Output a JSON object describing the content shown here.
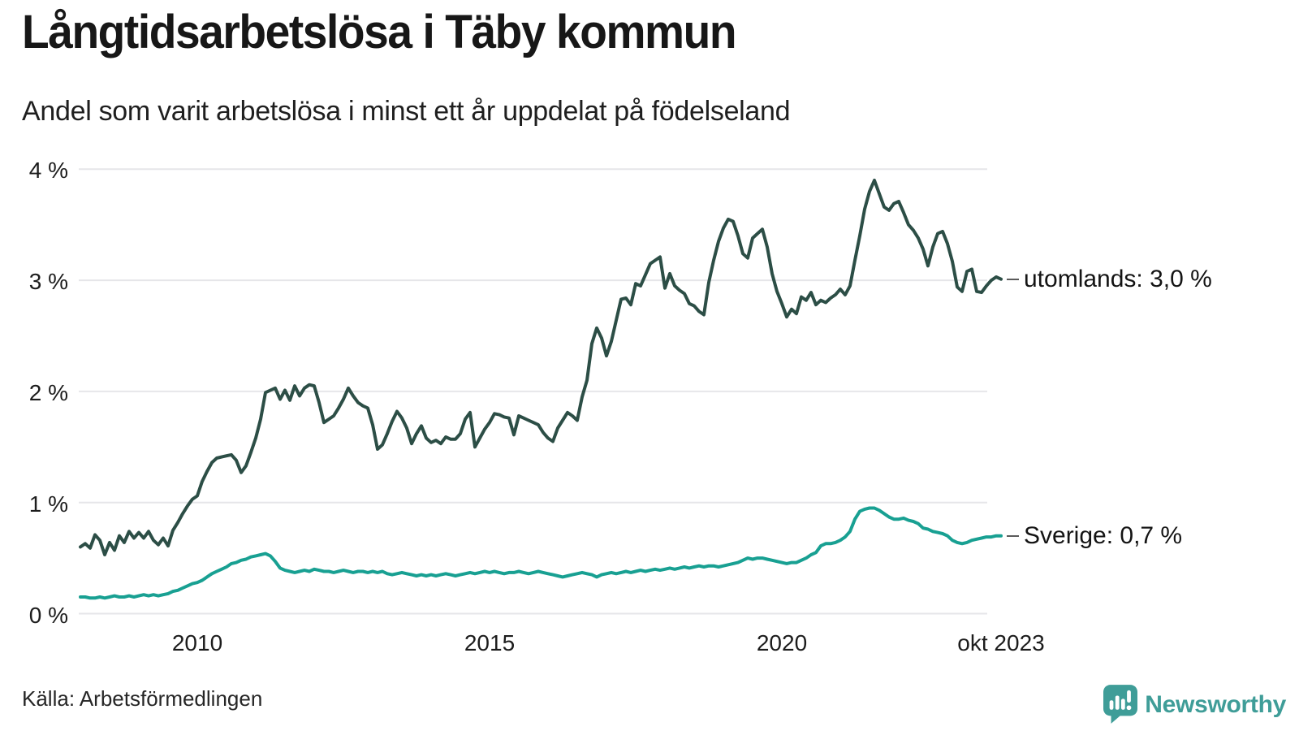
{
  "header": {
    "title": "Långtidsarbetslösa i Täby kommun",
    "subtitle": "Andel som varit arbetslösa i minst ett år uppdelat på födelseland"
  },
  "footer": {
    "source": "Källa: Arbetsförmedlingen",
    "brand": "Newsworthy"
  },
  "colors": {
    "utomlands_line": "#2c4e46",
    "sverige_line": "#18a092",
    "grid": "#e6e6e9",
    "brand_teal": "#3f9d98",
    "text": "#1a1a1a"
  },
  "chart_data": {
    "type": "line",
    "title": "Långtidsarbetslösa i Täby kommun",
    "subtitle": "Andel som varit arbetslösa i minst ett år uppdelat på födelseland",
    "x_unit": "month",
    "x_start": "2008-01",
    "x_end": "2023-10",
    "ylim": [
      0,
      4
    ],
    "grid": "horizontal",
    "legend_position": "right-end-labels",
    "y_ticks": [
      {
        "label": "0 %",
        "value": 0
      },
      {
        "label": "1 %",
        "value": 1
      },
      {
        "label": "2 %",
        "value": 2
      },
      {
        "label": "3 %",
        "value": 3
      },
      {
        "label": "4 %",
        "value": 4
      }
    ],
    "x_ticks": [
      {
        "label": "2010",
        "month_index": 24
      },
      {
        "label": "2015",
        "month_index": 84
      },
      {
        "label": "2020",
        "month_index": 144
      },
      {
        "label": "okt 2023",
        "month_index": 189
      }
    ],
    "series": [
      {
        "name": "utomlands",
        "label": "utomlands: 3,0 %",
        "end_value_label": "3,0 %",
        "color": "#2c4e46",
        "values": [
          0.6,
          0.63,
          0.59,
          0.71,
          0.66,
          0.53,
          0.64,
          0.57,
          0.7,
          0.64,
          0.74,
          0.68,
          0.73,
          0.68,
          0.74,
          0.66,
          0.62,
          0.68,
          0.61,
          0.75,
          0.82,
          0.9,
          0.97,
          1.03,
          1.06,
          1.19,
          1.28,
          1.36,
          1.4,
          1.41,
          1.42,
          1.43,
          1.38,
          1.27,
          1.33,
          1.45,
          1.58,
          1.75,
          1.99,
          2.01,
          2.03,
          1.93,
          2.01,
          1.92,
          2.05,
          1.96,
          2.03,
          2.06,
          2.05,
          1.9,
          1.72,
          1.75,
          1.78,
          1.85,
          1.93,
          2.03,
          1.96,
          1.9,
          1.87,
          1.85,
          1.7,
          1.48,
          1.52,
          1.62,
          1.73,
          1.82,
          1.76,
          1.67,
          1.53,
          1.62,
          1.69,
          1.58,
          1.54,
          1.56,
          1.53,
          1.59,
          1.57,
          1.57,
          1.62,
          1.75,
          1.81,
          1.5,
          1.58,
          1.66,
          1.72,
          1.8,
          1.79,
          1.77,
          1.76,
          1.61,
          1.78,
          1.76,
          1.74,
          1.72,
          1.7,
          1.63,
          1.58,
          1.55,
          1.67,
          1.74,
          1.81,
          1.78,
          1.74,
          1.95,
          2.1,
          2.43,
          2.57,
          2.48,
          2.32,
          2.45,
          2.64,
          2.83,
          2.84,
          2.78,
          2.97,
          2.95,
          3.05,
          3.15,
          3.18,
          3.21,
          2.93,
          3.06,
          2.95,
          2.91,
          2.88,
          2.79,
          2.77,
          2.72,
          2.69,
          2.98,
          3.18,
          3.35,
          3.47,
          3.55,
          3.53,
          3.4,
          3.24,
          3.2,
          3.38,
          3.42,
          3.46,
          3.3,
          3.06,
          2.9,
          2.79,
          2.67,
          2.74,
          2.7,
          2.85,
          2.82,
          2.89,
          2.78,
          2.82,
          2.8,
          2.84,
          2.87,
          2.92,
          2.87,
          2.95,
          3.18,
          3.4,
          3.64,
          3.8,
          3.9,
          3.78,
          3.66,
          3.63,
          3.69,
          3.71,
          3.61,
          3.5,
          3.45,
          3.38,
          3.28,
          3.13,
          3.3,
          3.42,
          3.44,
          3.33,
          3.17,
          2.94,
          2.9,
          3.08,
          3.1,
          2.9,
          2.89,
          2.95,
          3.0,
          3.03,
          3.01
        ]
      },
      {
        "name": "Sverige",
        "label": "Sverige: 0,7 %",
        "end_value_label": "0,7 %",
        "color": "#18a092",
        "values": [
          0.15,
          0.15,
          0.14,
          0.14,
          0.15,
          0.14,
          0.15,
          0.16,
          0.15,
          0.15,
          0.16,
          0.15,
          0.16,
          0.17,
          0.16,
          0.17,
          0.16,
          0.17,
          0.18,
          0.2,
          0.21,
          0.23,
          0.25,
          0.27,
          0.28,
          0.3,
          0.33,
          0.36,
          0.38,
          0.4,
          0.42,
          0.45,
          0.46,
          0.48,
          0.49,
          0.51,
          0.52,
          0.53,
          0.54,
          0.52,
          0.47,
          0.41,
          0.39,
          0.38,
          0.37,
          0.38,
          0.39,
          0.38,
          0.4,
          0.39,
          0.38,
          0.38,
          0.37,
          0.38,
          0.39,
          0.38,
          0.37,
          0.38,
          0.38,
          0.37,
          0.38,
          0.37,
          0.38,
          0.36,
          0.35,
          0.36,
          0.37,
          0.36,
          0.35,
          0.34,
          0.35,
          0.34,
          0.35,
          0.34,
          0.35,
          0.36,
          0.35,
          0.34,
          0.35,
          0.36,
          0.37,
          0.36,
          0.37,
          0.38,
          0.37,
          0.38,
          0.37,
          0.36,
          0.37,
          0.37,
          0.38,
          0.37,
          0.36,
          0.37,
          0.38,
          0.37,
          0.36,
          0.35,
          0.34,
          0.33,
          0.34,
          0.35,
          0.36,
          0.37,
          0.36,
          0.35,
          0.33,
          0.35,
          0.36,
          0.37,
          0.36,
          0.37,
          0.38,
          0.37,
          0.38,
          0.39,
          0.38,
          0.39,
          0.4,
          0.39,
          0.4,
          0.41,
          0.4,
          0.41,
          0.42,
          0.41,
          0.42,
          0.43,
          0.42,
          0.43,
          0.43,
          0.42,
          0.43,
          0.44,
          0.45,
          0.46,
          0.48,
          0.5,
          0.49,
          0.5,
          0.5,
          0.49,
          0.48,
          0.47,
          0.46,
          0.45,
          0.46,
          0.46,
          0.48,
          0.5,
          0.53,
          0.55,
          0.61,
          0.63,
          0.63,
          0.64,
          0.66,
          0.69,
          0.74,
          0.85,
          0.92,
          0.94,
          0.95,
          0.95,
          0.93,
          0.9,
          0.87,
          0.85,
          0.85,
          0.86,
          0.84,
          0.83,
          0.81,
          0.77,
          0.76,
          0.74,
          0.73,
          0.72,
          0.7,
          0.66,
          0.64,
          0.63,
          0.64,
          0.66,
          0.67,
          0.68,
          0.69,
          0.69,
          0.7,
          0.7
        ]
      }
    ]
  }
}
